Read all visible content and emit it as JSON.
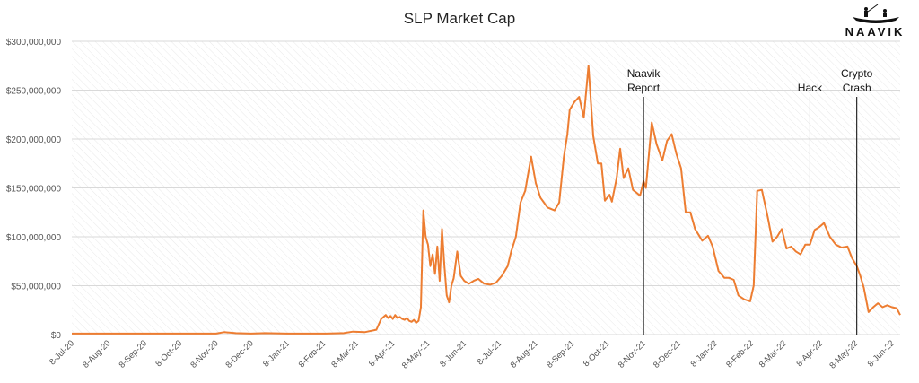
{
  "brand": {
    "name": "NAAVIK",
    "logo_icon": "boat-fishing-icon"
  },
  "colors": {
    "line": "#ed7d31",
    "grid": "#d9d9d9",
    "annotation": "#000000",
    "hatch": "#e6e6e6"
  },
  "chart_data": {
    "type": "line",
    "title": "SLP Market Cap",
    "xlabel": "",
    "ylabel": "",
    "ylim": [
      0,
      300000000
    ],
    "yticks": [
      0,
      50000000,
      100000000,
      150000000,
      200000000,
      250000000,
      300000000
    ],
    "ytick_labels": [
      "$0",
      "$50,000,000",
      "$100,000,000",
      "$150,000,000",
      "$200,000,000",
      "$250,000,000",
      "$300,000,000"
    ],
    "xlim": [
      "2020-07-08",
      "2022-06-15"
    ],
    "xticks": [
      "2020-07-08",
      "2020-08-08",
      "2020-09-08",
      "2020-10-08",
      "2020-11-08",
      "2020-12-08",
      "2021-01-08",
      "2021-02-08",
      "2021-03-08",
      "2021-04-08",
      "2021-05-08",
      "2021-06-08",
      "2021-07-08",
      "2021-08-08",
      "2021-09-08",
      "2021-10-08",
      "2021-11-08",
      "2021-12-08",
      "2022-01-08",
      "2022-02-08",
      "2022-03-08",
      "2022-04-08",
      "2022-05-08",
      "2022-06-08"
    ],
    "xtick_labels": [
      "8-Jul-20",
      "8-Aug-20",
      "8-Sep-20",
      "8-Oct-20",
      "8-Nov-20",
      "8-Dec-20",
      "8-Jan-21",
      "8-Feb-21",
      "8-Mar-21",
      "8-Apr-21",
      "8-May-21",
      "8-Jun-21",
      "8-Jul-21",
      "8-Aug-21",
      "8-Sep-21",
      "8-Oct-21",
      "8-Nov-21",
      "8-Dec-21",
      "8-Jan-22",
      "8-Feb-22",
      "8-Mar-22",
      "8-Apr-22",
      "8-May-22",
      "8-Jun-22"
    ],
    "grid": true,
    "series": [
      {
        "name": "",
        "x": [
          "2020-07-08",
          "2020-08-15",
          "2020-09-20",
          "2020-10-25",
          "2020-11-08",
          "2020-11-15",
          "2020-11-25",
          "2020-12-08",
          "2020-12-20",
          "2021-01-08",
          "2021-01-25",
          "2021-02-10",
          "2021-02-25",
          "2021-03-05",
          "2021-03-15",
          "2021-03-25",
          "2021-03-29",
          "2021-04-02",
          "2021-04-04",
          "2021-04-06",
          "2021-04-08",
          "2021-04-10",
          "2021-04-12",
          "2021-04-14",
          "2021-04-16",
          "2021-04-18",
          "2021-04-20",
          "2021-04-22",
          "2021-04-24",
          "2021-04-26",
          "2021-04-28",
          "2021-04-30",
          "2021-05-02",
          "2021-05-04",
          "2021-05-06",
          "2021-05-08",
          "2021-05-10",
          "2021-05-12",
          "2021-05-14",
          "2021-05-16",
          "2021-05-18",
          "2021-05-20",
          "2021-05-22",
          "2021-05-24",
          "2021-05-26",
          "2021-05-28",
          "2021-05-30",
          "2021-06-02",
          "2021-06-05",
          "2021-06-08",
          "2021-06-12",
          "2021-06-16",
          "2021-06-20",
          "2021-06-25",
          "2021-06-30",
          "2021-07-05",
          "2021-07-10",
          "2021-07-15",
          "2021-07-18",
          "2021-07-22",
          "2021-07-26",
          "2021-07-30",
          "2021-08-04",
          "2021-08-08",
          "2021-08-12",
          "2021-08-18",
          "2021-08-24",
          "2021-08-28",
          "2021-09-01",
          "2021-09-04",
          "2021-09-06",
          "2021-09-10",
          "2021-09-14",
          "2021-09-18",
          "2021-09-22",
          "2021-09-26",
          "2021-09-30",
          "2021-10-03",
          "2021-10-06",
          "2021-10-10",
          "2021-10-12",
          "2021-10-16",
          "2021-10-19",
          "2021-10-22",
          "2021-10-26",
          "2021-10-30",
          "2021-11-02",
          "2021-11-05",
          "2021-11-08",
          "2021-11-10",
          "2021-11-15",
          "2021-11-19",
          "2021-11-24",
          "2021-11-28",
          "2021-12-02",
          "2021-12-06",
          "2021-12-10",
          "2021-12-14",
          "2021-12-18",
          "2021-12-22",
          "2021-12-28",
          "2022-01-02",
          "2022-01-06",
          "2022-01-11",
          "2022-01-16",
          "2022-01-20",
          "2022-01-24",
          "2022-01-28",
          "2022-02-02",
          "2022-02-07",
          "2022-02-10",
          "2022-02-13",
          "2022-02-17",
          "2022-02-22",
          "2022-02-26",
          "2022-03-02",
          "2022-03-06",
          "2022-03-10",
          "2022-03-14",
          "2022-03-18",
          "2022-03-22",
          "2022-03-26",
          "2022-03-30",
          "2022-04-03",
          "2022-04-07",
          "2022-04-11",
          "2022-04-16",
          "2022-04-21",
          "2022-04-26",
          "2022-05-01",
          "2022-05-05",
          "2022-05-09",
          "2022-05-12",
          "2022-05-15",
          "2022-05-19",
          "2022-05-23",
          "2022-05-27",
          "2022-05-31",
          "2022-06-04",
          "2022-06-08",
          "2022-06-12",
          "2022-06-15"
        ],
        "y": [
          1000000,
          1000000,
          1000000,
          1000000,
          1000000,
          2500000,
          1500000,
          1000000,
          1500000,
          1000000,
          1000000,
          1000000,
          1500000,
          3000000,
          2500000,
          5000000,
          16000000,
          20000000,
          17000000,
          19000000,
          16000000,
          20000000,
          17000000,
          18000000,
          16000000,
          15000000,
          17000000,
          14000000,
          13000000,
          15000000,
          12000000,
          14000000,
          28000000,
          127000000,
          100000000,
          92000000,
          70000000,
          82000000,
          62000000,
          90000000,
          55000000,
          108000000,
          70000000,
          40000000,
          33000000,
          50000000,
          58000000,
          85000000,
          60000000,
          55000000,
          52000000,
          55000000,
          57000000,
          52000000,
          51000000,
          53000000,
          60000000,
          70000000,
          85000000,
          100000000,
          135000000,
          147000000,
          182000000,
          155000000,
          140000000,
          130000000,
          127000000,
          135000000,
          182000000,
          205000000,
          230000000,
          238000000,
          243000000,
          222000000,
          275000000,
          203000000,
          175000000,
          175000000,
          137000000,
          143000000,
          136000000,
          160000000,
          190000000,
          160000000,
          170000000,
          148000000,
          145000000,
          142000000,
          157000000,
          150000000,
          217000000,
          195000000,
          178000000,
          198000000,
          205000000,
          185000000,
          170000000,
          125000000,
          125000000,
          108000000,
          96000000,
          101000000,
          90000000,
          65000000,
          58000000,
          58000000,
          56000000,
          40000000,
          36000000,
          34000000,
          50000000,
          147000000,
          148000000,
          120000000,
          95000000,
          100000000,
          108000000,
          88000000,
          90000000,
          85000000,
          82000000,
          92000000,
          92000000,
          107000000,
          110000000,
          114000000,
          100000000,
          92000000,
          89000000,
          90000000,
          78000000,
          70000000,
          60000000,
          48000000,
          23000000,
          28000000,
          32000000,
          28000000,
          30000000,
          28000000,
          27000000,
          20000000
        ]
      }
    ],
    "annotations": [
      {
        "label_lines": [
          "Naavik",
          "Report"
        ],
        "x": "2021-11-08"
      },
      {
        "label_lines": [
          "Hack"
        ],
        "x": "2022-03-30"
      },
      {
        "label_lines": [
          "Crypto",
          "Crash"
        ],
        "x": "2022-05-09"
      }
    ]
  }
}
